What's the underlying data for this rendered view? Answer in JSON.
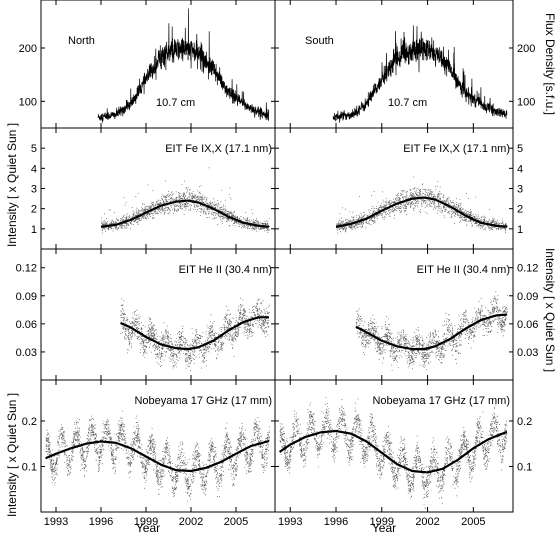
{
  "chart_data": [
    {
      "type": "line",
      "panel": "flux-north",
      "annotations": [
        "North",
        "10.7 cm"
      ],
      "ylim": [
        50,
        290
      ],
      "yticks": [
        100,
        200
      ],
      "ylabel": "",
      "series": [
        {
          "x": [
            1995.8,
            1997.0,
            1998.0,
            1999.0,
            2000.0,
            2001.5,
            2002.5,
            2003.5,
            2004.5,
            2005.5,
            2006.5,
            2007.2
          ],
          "values": [
            70,
            75,
            95,
            140,
            185,
            200,
            190,
            160,
            115,
            95,
            80,
            75
          ]
        }
      ]
    },
    {
      "type": "line",
      "panel": "flux-south",
      "annotations": [
        "South",
        "10.7 cm"
      ],
      "ylim": [
        50,
        290
      ],
      "yticks": [
        100,
        200
      ],
      "ylabel": "Flux Density [s.f.u.]",
      "series": [
        {
          "x": [
            1995.8,
            1997.0,
            1998.0,
            1999.0,
            2000.0,
            2001.5,
            2002.5,
            2003.5,
            2004.5,
            2005.5,
            2006.5,
            2007.2
          ],
          "values": [
            70,
            75,
            95,
            140,
            185,
            200,
            190,
            160,
            115,
            95,
            80,
            75
          ]
        }
      ]
    },
    {
      "type": "scatter",
      "panel": "eit171-north",
      "annotations": [
        "EIT Fe IX,X (17.1 nm)"
      ],
      "ylim": [
        0,
        6
      ],
      "yticks": [
        1,
        2,
        3,
        4,
        5
      ],
      "ylabel": "Intensity [ x Quiet Sun ]",
      "fit": {
        "x": [
          1996.0,
          1997.0,
          1998.0,
          1999.0,
          2000.0,
          2001.0,
          2001.8,
          2002.5,
          2003.5,
          2004.5,
          2005.5,
          2006.5,
          2007.2
        ],
        "values": [
          1.1,
          1.2,
          1.45,
          1.8,
          2.15,
          2.35,
          2.4,
          2.3,
          2.0,
          1.6,
          1.3,
          1.15,
          1.1
        ]
      }
    },
    {
      "type": "scatter",
      "panel": "eit171-south",
      "annotations": [
        "EIT Fe IX,X (17.1 nm)"
      ],
      "ylim": [
        0,
        6
      ],
      "yticks": [
        1,
        2,
        3,
        4,
        5
      ],
      "ylabel": "",
      "fit": {
        "x": [
          1996.0,
          1997.0,
          1998.0,
          1999.0,
          2000.0,
          2001.0,
          2001.8,
          2002.5,
          2003.5,
          2004.5,
          2005.5,
          2006.5,
          2007.2
        ],
        "values": [
          1.1,
          1.25,
          1.5,
          1.9,
          2.25,
          2.5,
          2.55,
          2.45,
          2.1,
          1.65,
          1.3,
          1.15,
          1.1
        ]
      }
    },
    {
      "type": "scatter",
      "panel": "eit304-north",
      "annotations": [
        "EIT He II (30.4 nm)"
      ],
      "ylim": [
        0,
        0.14
      ],
      "yticks": [
        0.03,
        0.06,
        0.09,
        0.12
      ],
      "ylabel": "",
      "fit": {
        "x": [
          1997.3,
          1998.0,
          1999.0,
          2000.0,
          2001.0,
          2001.8,
          2002.5,
          2003.5,
          2004.5,
          2005.5,
          2006.5,
          2007.2
        ],
        "values": [
          0.061,
          0.056,
          0.046,
          0.038,
          0.034,
          0.033,
          0.035,
          0.042,
          0.053,
          0.062,
          0.067,
          0.067
        ]
      }
    },
    {
      "type": "scatter",
      "panel": "eit304-south",
      "annotations": [
        "EIT He II (30.4 nm)"
      ],
      "ylim": [
        0,
        0.14
      ],
      "yticks": [
        0.03,
        0.06,
        0.09,
        0.12
      ],
      "ylabel": "Intensity [ x Quiet Sun ]",
      "fit": {
        "x": [
          1997.3,
          1998.0,
          1999.0,
          2000.0,
          2001.0,
          2001.8,
          2002.5,
          2003.5,
          2004.5,
          2005.5,
          2006.5,
          2007.2
        ],
        "values": [
          0.057,
          0.051,
          0.042,
          0.036,
          0.033,
          0.033,
          0.036,
          0.044,
          0.055,
          0.064,
          0.069,
          0.07
        ]
      }
    },
    {
      "type": "scatter",
      "panel": "nobeyama-north",
      "annotations": [
        "Nobeyama 17 GHz (17 mm)"
      ],
      "ylim": [
        0,
        0.29
      ],
      "yticks": [
        0.1,
        0.2
      ],
      "ylabel": "Intensity [ x Quiet Sun ]",
      "xlabel": "Year",
      "xticks": [
        1993,
        1996,
        1999,
        2002,
        2005
      ],
      "fit": {
        "x": [
          1992.3,
          1993.0,
          1994.0,
          1995.0,
          1996.0,
          1997.0,
          1998.0,
          1999.0,
          2000.0,
          2001.0,
          2002.0,
          2003.0,
          2004.0,
          2005.0,
          2006.0,
          2007.2
        ],
        "values": [
          0.118,
          0.128,
          0.14,
          0.15,
          0.155,
          0.152,
          0.14,
          0.122,
          0.104,
          0.092,
          0.09,
          0.097,
          0.11,
          0.128,
          0.145,
          0.156
        ]
      }
    },
    {
      "type": "scatter",
      "panel": "nobeyama-south",
      "annotations": [
        "Nobeyama 17 GHz (17 mm)"
      ],
      "ylim": [
        0,
        0.29
      ],
      "yticks": [
        0.1,
        0.2
      ],
      "ylabel": "",
      "xlabel": "Year",
      "xticks": [
        1993,
        1996,
        1999,
        2002,
        2005
      ],
      "fit": {
        "x": [
          1992.3,
          1993.0,
          1994.0,
          1995.0,
          1996.0,
          1997.0,
          1998.0,
          1999.0,
          2000.0,
          2001.0,
          2002.0,
          2003.0,
          2004.0,
          2005.0,
          2006.0,
          2007.2
        ],
        "values": [
          0.132,
          0.148,
          0.165,
          0.175,
          0.178,
          0.172,
          0.155,
          0.13,
          0.105,
          0.09,
          0.087,
          0.095,
          0.115,
          0.14,
          0.16,
          0.176
        ]
      }
    }
  ]
}
